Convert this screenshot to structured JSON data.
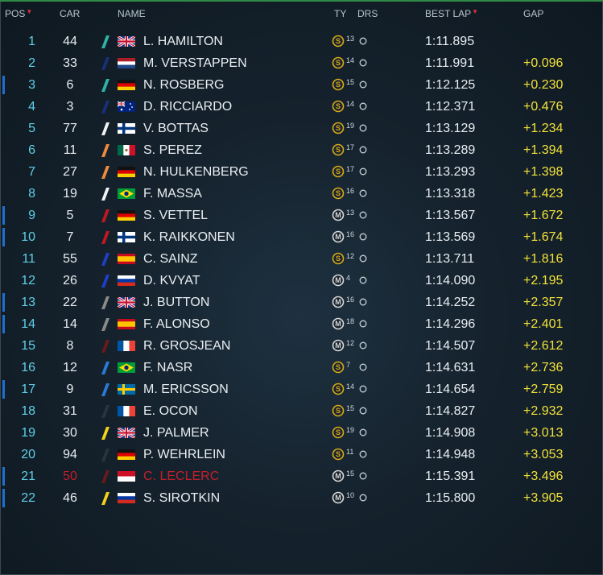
{
  "header": {
    "pos": "POS",
    "car": "CAR",
    "name": "NAME",
    "tyre": "TY",
    "drs": "DRS",
    "best_lap": "BEST LAP",
    "gap": "GAP"
  },
  "colors": {
    "pos": "#5fd0e8",
    "gap": "#f2e23a",
    "retired": "#c2202a",
    "marker": "#1f6fd1",
    "soft_tyre": "#d8a81a",
    "medium_tyre": "#d8d8d8"
  },
  "rows": [
    {
      "pos": "1",
      "car": "44",
      "name": "L. HAMILTON",
      "flag": "gb",
      "team": "#2fb3a5",
      "tyre": "S",
      "age": "13",
      "lap": "1:11.895",
      "gap": "",
      "marker": false,
      "retired": false
    },
    {
      "pos": "2",
      "car": "33",
      "name": "M. VERSTAPPEN",
      "flag": "nl",
      "team": "#1a2f7a",
      "tyre": "S",
      "age": "14",
      "lap": "1:11.991",
      "gap": "+0.096",
      "marker": false,
      "retired": false
    },
    {
      "pos": "3",
      "car": "6",
      "name": "N. ROSBERG",
      "flag": "de",
      "team": "#2fb3a5",
      "tyre": "S",
      "age": "15",
      "lap": "1:12.125",
      "gap": "+0.230",
      "marker": true,
      "retired": false
    },
    {
      "pos": "4",
      "car": "3",
      "name": "D. RICCIARDO",
      "flag": "au",
      "team": "#1a2f7a",
      "tyre": "S",
      "age": "14",
      "lap": "1:12.371",
      "gap": "+0.476",
      "marker": false,
      "retired": false
    },
    {
      "pos": "5",
      "car": "77",
      "name": "V. BOTTAS",
      "flag": "fi",
      "team": "#f2f2f2",
      "tyre": "S",
      "age": "19",
      "lap": "1:13.129",
      "gap": "+1.234",
      "marker": false,
      "retired": false
    },
    {
      "pos": "6",
      "car": "11",
      "name": "S. PEREZ",
      "flag": "mx",
      "team": "#f08a3a",
      "tyre": "S",
      "age": "17",
      "lap": "1:13.289",
      "gap": "+1.394",
      "marker": false,
      "retired": false
    },
    {
      "pos": "7",
      "car": "27",
      "name": "N. HULKENBERG",
      "flag": "de",
      "team": "#f08a3a",
      "tyre": "S",
      "age": "17",
      "lap": "1:13.293",
      "gap": "+1.398",
      "marker": false,
      "retired": false
    },
    {
      "pos": "8",
      "car": "19",
      "name": "F. MASSA",
      "flag": "br",
      "team": "#f2f2f2",
      "tyre": "S",
      "age": "16",
      "lap": "1:13.318",
      "gap": "+1.423",
      "marker": false,
      "retired": false
    },
    {
      "pos": "9",
      "car": "5",
      "name": "S. VETTEL",
      "flag": "de",
      "team": "#c41820",
      "tyre": "M",
      "age": "13",
      "lap": "1:13.567",
      "gap": "+1.672",
      "marker": true,
      "retired": false
    },
    {
      "pos": "10",
      "car": "7",
      "name": "K. RAIKKONEN",
      "flag": "fi",
      "team": "#c41820",
      "tyre": "M",
      "age": "16",
      "lap": "1:13.569",
      "gap": "+1.674",
      "marker": true,
      "retired": false
    },
    {
      "pos": "11",
      "car": "55",
      "name": "C. SAINZ",
      "flag": "es",
      "team": "#1f3fc8",
      "tyre": "S",
      "age": "12",
      "lap": "1:13.711",
      "gap": "+1.816",
      "marker": false,
      "retired": false
    },
    {
      "pos": "12",
      "car": "26",
      "name": "D. KVYAT",
      "flag": "ru",
      "team": "#1f3fc8",
      "tyre": "M",
      "age": "4",
      "lap": "1:14.090",
      "gap": "+2.195",
      "marker": false,
      "retired": false
    },
    {
      "pos": "13",
      "car": "22",
      "name": "J. BUTTON",
      "flag": "gb",
      "team": "#8a8a8a",
      "tyre": "M",
      "age": "16",
      "lap": "1:14.252",
      "gap": "+2.357",
      "marker": true,
      "retired": false
    },
    {
      "pos": "14",
      "car": "14",
      "name": "F. ALONSO",
      "flag": "es",
      "team": "#8a8a8a",
      "tyre": "M",
      "age": "18",
      "lap": "1:14.296",
      "gap": "+2.401",
      "marker": true,
      "retired": false
    },
    {
      "pos": "15",
      "car": "8",
      "name": "R. GROSJEAN",
      "flag": "fr",
      "team": "#6a1a1a",
      "tyre": "M",
      "age": "12",
      "lap": "1:14.507",
      "gap": "+2.612",
      "marker": false,
      "retired": false
    },
    {
      "pos": "16",
      "car": "12",
      "name": "F. NASR",
      "flag": "br",
      "team": "#2a7ad8",
      "tyre": "S",
      "age": "7",
      "lap": "1:14.631",
      "gap": "+2.736",
      "marker": false,
      "retired": false
    },
    {
      "pos": "17",
      "car": "9",
      "name": "M. ERICSSON",
      "flag": "se",
      "team": "#2a7ad8",
      "tyre": "S",
      "age": "14",
      "lap": "1:14.654",
      "gap": "+2.759",
      "marker": true,
      "retired": false
    },
    {
      "pos": "18",
      "car": "31",
      "name": "E. OCON",
      "flag": "fr",
      "team": "#2a3440",
      "tyre": "S",
      "age": "15",
      "lap": "1:14.827",
      "gap": "+2.932",
      "marker": false,
      "retired": false
    },
    {
      "pos": "19",
      "car": "30",
      "name": "J. PALMER",
      "flag": "gb",
      "team": "#f2d21a",
      "tyre": "S",
      "age": "19",
      "lap": "1:14.908",
      "gap": "+3.013",
      "marker": false,
      "retired": false
    },
    {
      "pos": "20",
      "car": "94",
      "name": "P. WEHRLEIN",
      "flag": "de",
      "team": "#2a3440",
      "tyre": "S",
      "age": "11",
      "lap": "1:14.948",
      "gap": "+3.053",
      "marker": false,
      "retired": false
    },
    {
      "pos": "21",
      "car": "50",
      "name": "C. LECLERC",
      "flag": "mc",
      "team": "#6a1a1a",
      "tyre": "M",
      "age": "15",
      "lap": "1:15.391",
      "gap": "+3.496",
      "marker": true,
      "retired": true
    },
    {
      "pos": "22",
      "car": "46",
      "name": "S. SIROTKIN",
      "flag": "ru",
      "team": "#f2d21a",
      "tyre": "M",
      "age": "10",
      "lap": "1:15.800",
      "gap": "+3.905",
      "marker": true,
      "retired": false
    }
  ]
}
